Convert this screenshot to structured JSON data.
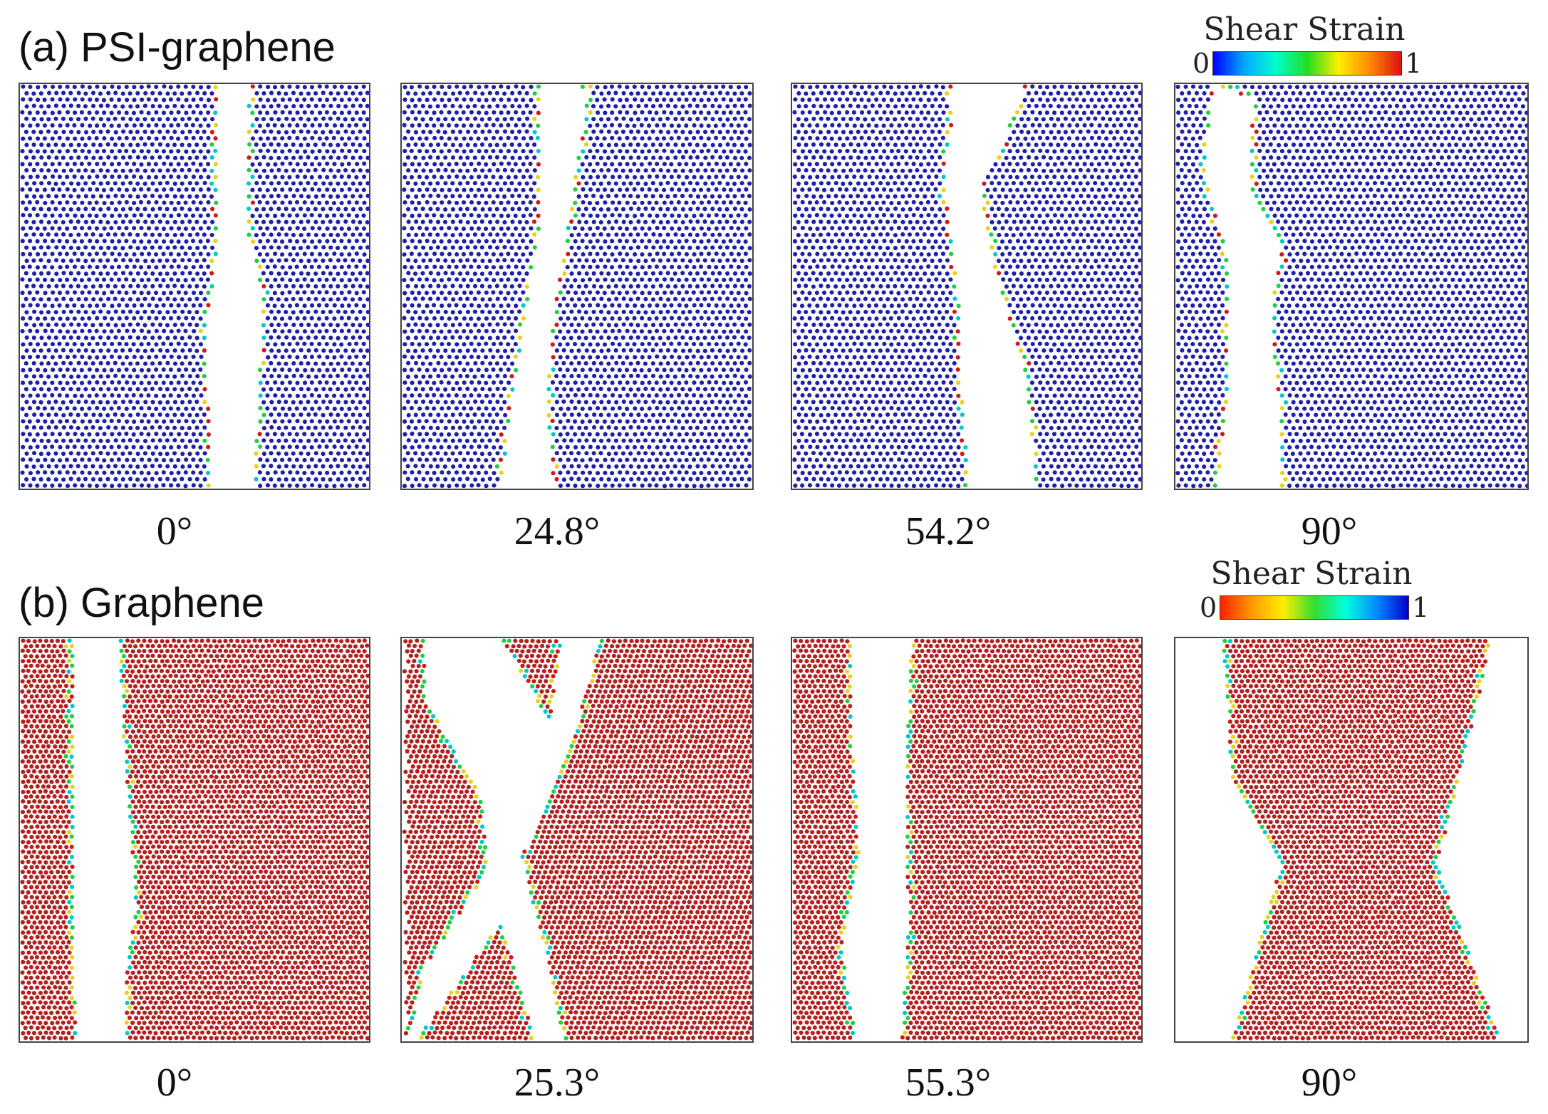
{
  "figure": {
    "row_a": {
      "title": "(a) PSI-graphene",
      "lattice_color": "#1f1fa8",
      "angles": [
        "0°",
        "24.8°",
        "54.2°",
        "90°"
      ],
      "legend": {
        "title": "Shear Strain",
        "min": "0",
        "max": "1",
        "gradient": [
          "#0000ff",
          "#00aaff",
          "#00ffcc",
          "#22dd22",
          "#ffee00",
          "#ff8800",
          "#dd1111"
        ]
      }
    },
    "row_b": {
      "title": "(b) Graphene",
      "lattice_color": "#b22020",
      "angles": [
        "0°",
        "25.3°",
        "55.3°",
        "90°"
      ],
      "legend": {
        "title": "Shear Strain",
        "min": "0",
        "max": "1",
        "gradient": [
          "#ff2200",
          "#ff9900",
          "#ffee00",
          "#33dd33",
          "#00ffdd",
          "#0088ff",
          "#0000cc"
        ]
      }
    },
    "edge_colors": [
      "#cc1a1a",
      "#22cc44",
      "#00c8c8",
      "#e8d020",
      "#1f1fa8"
    ]
  }
}
